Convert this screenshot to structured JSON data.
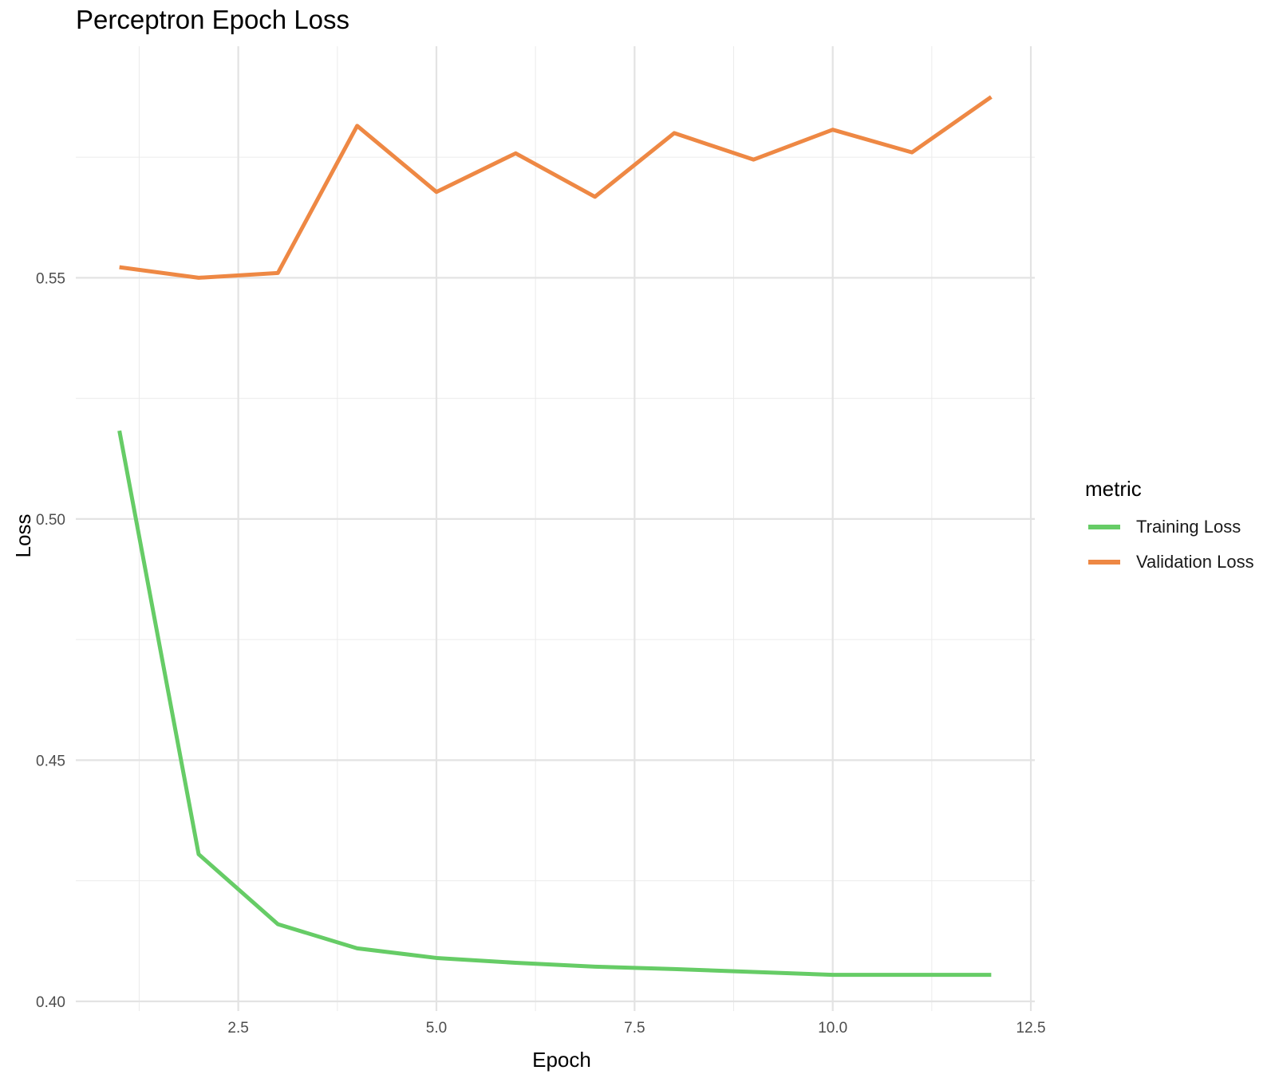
{
  "chart_data": {
    "type": "line",
    "title": "Perceptron Epoch Loss",
    "xlabel": "Epoch",
    "ylabel": "Loss",
    "xlim": [
      0.45,
      12.55
    ],
    "ylim": [
      0.398,
      0.598
    ],
    "x_ticks": [
      2.5,
      5.0,
      7.5,
      10.0,
      12.5
    ],
    "x_tick_labels": [
      "2.5",
      "5.0",
      "7.5",
      "10.0",
      "12.5"
    ],
    "y_ticks": [
      0.4,
      0.45,
      0.5,
      0.55
    ],
    "y_tick_labels": [
      "0.40",
      "0.45",
      "0.50",
      "0.55"
    ],
    "grid": true,
    "legend": {
      "title": "metric",
      "position": "right"
    },
    "x": [
      1,
      2,
      3,
      4,
      5,
      6,
      7,
      8,
      9,
      10,
      11,
      12
    ],
    "series": [
      {
        "name": "Training Loss",
        "color": "#66cc66",
        "values": [
          0.5183,
          0.4305,
          0.416,
          0.411,
          0.409,
          0.408,
          0.4072,
          0.4067,
          0.4061,
          0.4055,
          0.4055,
          0.4055
        ]
      },
      {
        "name": "Validation Loss",
        "color": "#ee8844",
        "values": [
          0.5522,
          0.55,
          0.551,
          0.5815,
          0.5678,
          0.5758,
          0.5668,
          0.58,
          0.5745,
          0.5807,
          0.576,
          0.5875
        ]
      }
    ]
  }
}
